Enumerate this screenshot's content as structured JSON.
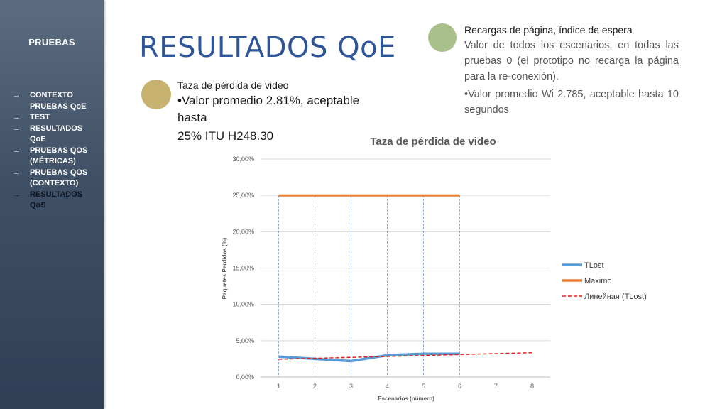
{
  "sidebar": {
    "title": "PRUEBAS",
    "items": [
      {
        "label": "CONTEXTO\nPRUEBAS QoE",
        "arrow": "→"
      },
      {
        "label": "TEST",
        "arrow": "→"
      },
      {
        "label": "RESULTADOS\nQoE",
        "arrow": "→"
      },
      {
        "label": "PRUEBAS QOS\n(MÉTRICAS)",
        "arrow": "→"
      },
      {
        "label": "PRUEBAS QOS\n(CONTEXTO)",
        "arrow": "→"
      },
      {
        "label": "RESULTADOS\nQoS",
        "arrow": "→"
      }
    ]
  },
  "page_title": "RESULTADOS QoE",
  "block1": {
    "subtitle": "Taza de pérdida de video",
    "line1": "•Valor promedio 2.81%, aceptable hasta",
    "line2": "25% ITU H248.30"
  },
  "block2": {
    "subtitle": "Recargas de página, índice de espera",
    "para1": "Valor de todos los escenarios, en todas las pruebas 0 (el prototipo no recarga la página para la re-conexión).",
    "para2": "•Valor promedio Wi 2.785, aceptable hasta 10 segundos"
  },
  "colors": {
    "accent_title": "#2f5597",
    "circle_1": "#c7b26f",
    "circle_2": "#a9c08a"
  },
  "chart_data": {
    "type": "line",
    "title": "Taza de pérdida de video",
    "xlabel": "Escenarios (número)",
    "ylabel": "Paquetes Perdidos (%)",
    "x": [
      1,
      2,
      3,
      4,
      5,
      6,
      7,
      8
    ],
    "xlim": [
      0.5,
      8.5
    ],
    "ylim": [
      0,
      30
    ],
    "yticks": [
      0,
      5,
      10,
      15,
      20,
      25,
      30
    ],
    "ytick_labels": [
      "0,00%",
      "5,00%",
      "10,00%",
      "15,00%",
      "20,00%",
      "25,00%",
      "30,00%"
    ],
    "grid": true,
    "legend_position": "right",
    "series": [
      {
        "name": "TLost",
        "x": [
          1,
          2,
          3,
          4,
          5,
          6
        ],
        "values": [
          2.8,
          2.5,
          2.2,
          3.0,
          3.2,
          3.2
        ],
        "color": "#5b9bd5",
        "style": "solid"
      },
      {
        "name": "Maximo",
        "x": [
          1,
          2,
          3,
          4,
          5,
          6
        ],
        "values": [
          25,
          25,
          25,
          25,
          25,
          25
        ],
        "color": "#ed7d31",
        "style": "solid"
      },
      {
        "name": "Линейная (TLost)",
        "x": [
          1,
          8
        ],
        "values": [
          2.45,
          3.35
        ],
        "color": "#e02020",
        "style": "dashed"
      }
    ],
    "drop_lines": {
      "x": [
        1,
        2,
        3,
        4,
        5,
        6
      ],
      "color": "#8faadc"
    }
  }
}
